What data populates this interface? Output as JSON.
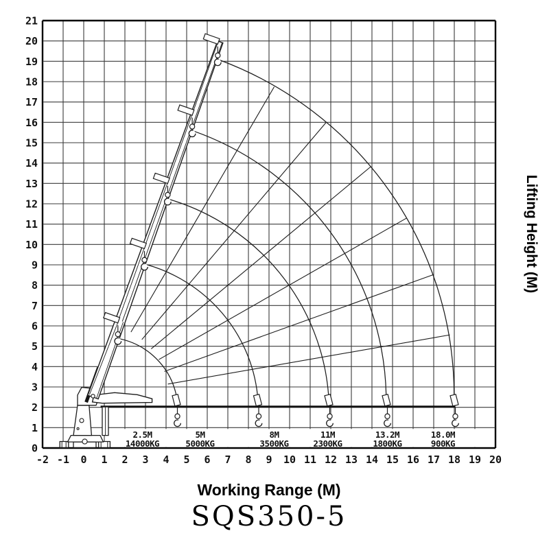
{
  "titles": {
    "x_axis": "Working Range (M)",
    "y_axis": "Lifting Height (M)",
    "model": "SQS350-5"
  },
  "axis": {
    "x_min": -2,
    "x_max": 20,
    "x_step": 1,
    "y_min": 0,
    "y_max": 21,
    "y_step": 1
  },
  "capacity_labels": [
    {
      "range": "2.5M",
      "load": "14000KG",
      "x": 2.85
    },
    {
      "range": "5M",
      "load": "5000KG",
      "x": 5.65
    },
    {
      "range": "8M",
      "load": "3500KG",
      "x": 9.25
    },
    {
      "range": "11M",
      "load": "2300KG",
      "x": 11.85
    },
    {
      "range": "13.2M",
      "load": "1800KG",
      "x": 14.75
    },
    {
      "range": "18.0M",
      "load": "900KG",
      "x": 17.45
    }
  ],
  "colors": {
    "line": "#1c1c1c",
    "grid": "#3a3a3a",
    "border": "#000000",
    "text": "#111111",
    "background": "#ffffff"
  },
  "chart_data": {
    "type": "line",
    "title": "SQS350-5",
    "xlabel": "Working Range (M)",
    "ylabel": "Lifting Height (M)",
    "x_range": [
      -2,
      20
    ],
    "y_range": [
      0,
      21
    ],
    "grid": "on",
    "load_ratings": [
      {
        "range_m": 2.5,
        "capacity_kg": 14000
      },
      {
        "range_m": 5,
        "capacity_kg": 5000
      },
      {
        "range_m": 8,
        "capacity_kg": 3500
      },
      {
        "range_m": 11,
        "capacity_kg": 2300
      },
      {
        "range_m": 13.2,
        "capacity_kg": 1800
      },
      {
        "range_m": 18.0,
        "capacity_kg": 900
      }
    ],
    "pivot": {
      "x": 0.45,
      "y": 2.5
    },
    "boom_max_angle_deg": 70.5,
    "boom_horizontal_height_m": 2.0,
    "raised_tips": [
      [
        1.78,
        6.25
      ],
      [
        3.07,
        9.9
      ],
      [
        4.2,
        13.1
      ],
      [
        5.39,
        16.45
      ],
      [
        6.63,
        19.95
      ]
    ],
    "horizontal_tips_x": [
      4.55,
      8.5,
      11.95,
      14.75,
      18.05
    ],
    "envelope_arc_radii_m": [
      3.6,
      7.5,
      10.9,
      14.1,
      17.6
    ],
    "radial_guide_angles_deg": [
      10,
      20,
      30,
      40,
      50,
      60
    ]
  }
}
